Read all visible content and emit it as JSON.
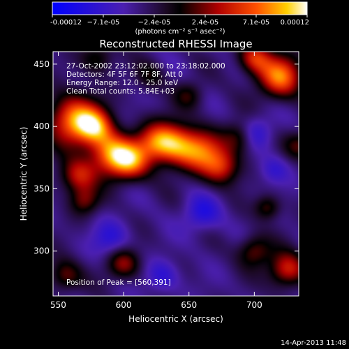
{
  "chart_data": {
    "type": "heatmap",
    "title": "Reconstructed RHESSI Image",
    "xlabel": "Heliocentric X (arcsec)",
    "ylabel": "Heliocentric Y (arcsec)",
    "xlim": [
      546,
      734
    ],
    "ylim": [
      264,
      460
    ],
    "x_ticks": [
      550,
      600,
      650,
      700
    ],
    "y_ticks": [
      300,
      350,
      400,
      450
    ],
    "colorbar": {
      "min": -0.00012,
      "max": 0.00012,
      "tick_labels": [
        "-0.00012",
        "−7.1e-05",
        "−2.4e-05",
        "2.4e-05",
        "7.1e-05",
        "0.00012"
      ],
      "unit_label": "(photons cm⁻² s⁻¹ asec⁻²)"
    },
    "info_lines": [
      "27-Oct-2002 23:12:02.000 to 23:18:02.000",
      "Detectors: 4F 5F 6F 7F 8F, Att 0",
      "Energy Range: 12.0 - 25.0 keV",
      "Clean    Total counts: 5.84E+03"
    ],
    "peak_label": "Position of Peak = [560,391]",
    "peak": [
      560,
      391
    ],
    "features": [
      {
        "x": 562,
        "y": 405,
        "amp": 1.0,
        "sigma": 14
      },
      {
        "x": 578,
        "y": 400,
        "amp": 0.75,
        "sigma": 10
      },
      {
        "x": 590,
        "y": 378,
        "amp": 0.9,
        "sigma": 12
      },
      {
        "x": 605,
        "y": 372,
        "amp": 0.8,
        "sigma": 11
      },
      {
        "x": 625,
        "y": 388,
        "amp": 0.7,
        "sigma": 11
      },
      {
        "x": 640,
        "y": 385,
        "amp": 0.8,
        "sigma": 12
      },
      {
        "x": 660,
        "y": 380,
        "amp": 0.75,
        "sigma": 12
      },
      {
        "x": 675,
        "y": 367,
        "amp": 0.65,
        "sigma": 10
      },
      {
        "x": 690,
        "y": 392,
        "amp": 0.5,
        "sigma": 9
      },
      {
        "x": 720,
        "y": 440,
        "amp": 0.95,
        "sigma": 12
      },
      {
        "x": 700,
        "y": 455,
        "amp": 0.7,
        "sigma": 9
      },
      {
        "x": 565,
        "y": 360,
        "amp": 0.65,
        "sigma": 10
      },
      {
        "x": 570,
        "y": 340,
        "amp": 0.45,
        "sigma": 8
      },
      {
        "x": 580,
        "y": 455,
        "amp": 0.4,
        "sigma": 9
      },
      {
        "x": 555,
        "y": 280,
        "amp": 0.5,
        "sigma": 9
      },
      {
        "x": 600,
        "y": 290,
        "amp": 0.55,
        "sigma": 9
      },
      {
        "x": 700,
        "y": 300,
        "amp": 0.5,
        "sigma": 9
      },
      {
        "x": 725,
        "y": 285,
        "amp": 0.75,
        "sigma": 10
      },
      {
        "x": 710,
        "y": 335,
        "amp": 0.45,
        "sigma": 7
      },
      {
        "x": 650,
        "y": 425,
        "amp": 0.35,
        "sigma": 8
      },
      {
        "x": 735,
        "y": 385,
        "amp": 0.4,
        "sigma": 8
      },
      {
        "x": 620,
        "y": 440,
        "amp": 0.3,
        "sigma": 8
      },
      {
        "x": 660,
        "y": 330,
        "amp": -0.4,
        "sigma": 10
      },
      {
        "x": 700,
        "y": 395,
        "amp": -0.45,
        "sigma": 9
      },
      {
        "x": 590,
        "y": 310,
        "amp": -0.35,
        "sigma": 10
      },
      {
        "x": 630,
        "y": 280,
        "amp": -0.35,
        "sigma": 9
      },
      {
        "x": 715,
        "y": 365,
        "amp": -0.3,
        "sigma": 8
      }
    ]
  },
  "footer": {
    "timestamp": "14-Apr-2013 11:48"
  }
}
